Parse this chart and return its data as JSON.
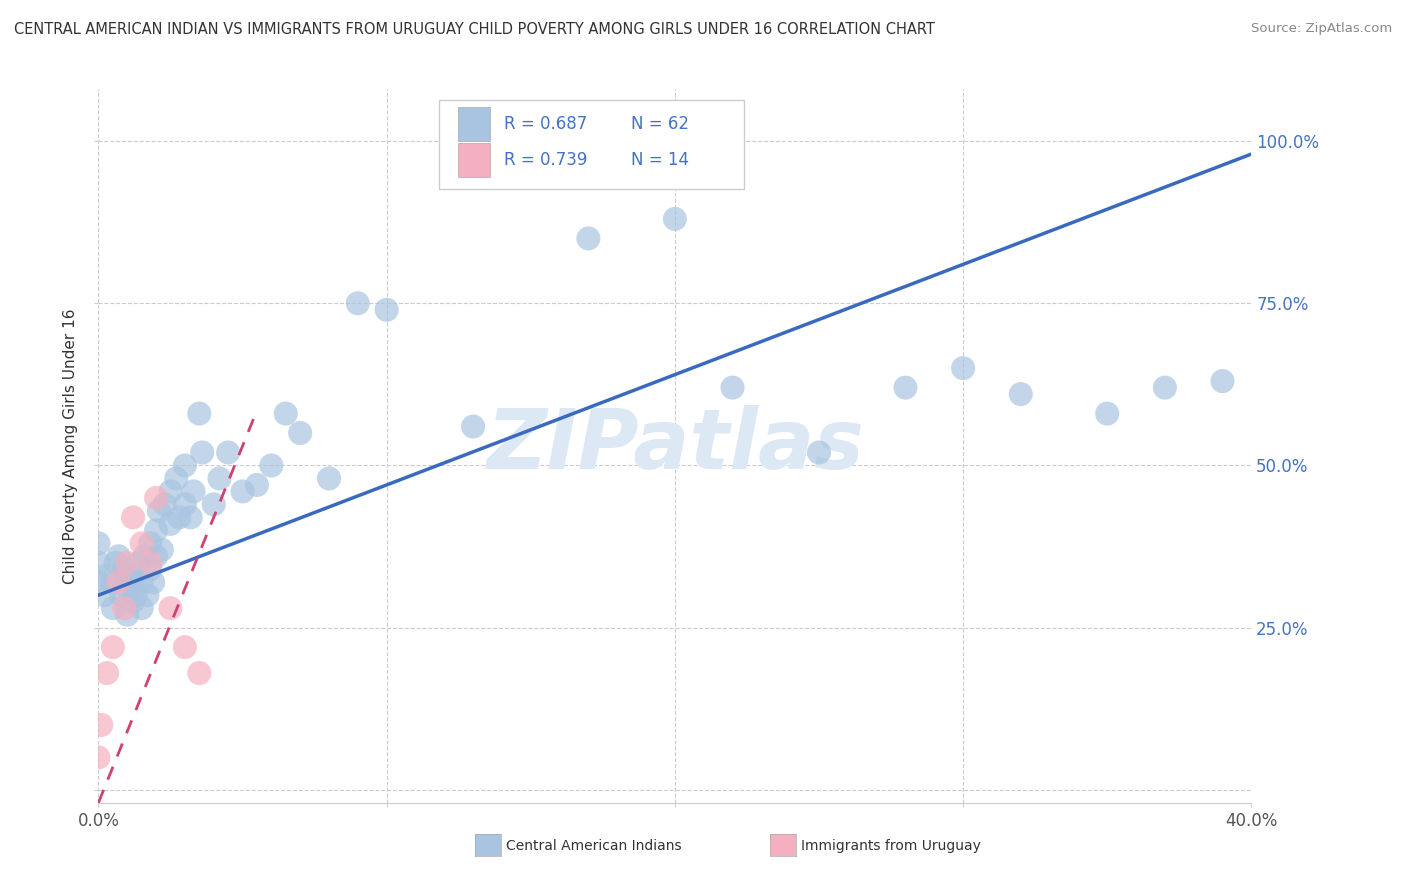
{
  "title": "CENTRAL AMERICAN INDIAN VS IMMIGRANTS FROM URUGUAY CHILD POVERTY AMONG GIRLS UNDER 16 CORRELATION CHART",
  "source": "Source: ZipAtlas.com",
  "ylabel": "Child Poverty Among Girls Under 16",
  "xlim": [
    0.0,
    0.4
  ],
  "ylim": [
    -0.02,
    1.08
  ],
  "xticks": [
    0.0,
    0.1,
    0.2,
    0.3,
    0.4
  ],
  "xticklabels": [
    "0.0%",
    "",
    "",
    "",
    "40.0%"
  ],
  "yticks": [
    0.0,
    0.25,
    0.5,
    0.75,
    1.0
  ],
  "yticklabels_right": [
    "",
    "25.0%",
    "50.0%",
    "75.0%",
    "100.0%"
  ],
  "blue_R": 0.687,
  "blue_N": 62,
  "pink_R": 0.739,
  "pink_N": 14,
  "blue_color": "#a8c4e0",
  "pink_color": "#f4b0c0",
  "blue_line_color": "#3a6abf",
  "pink_line_color": "#d04070",
  "text_color": "#4472c4",
  "watermark_color": "#dce8f4",
  "blue_scatter_x": [
    0.0,
    0.0,
    0.0,
    0.002,
    0.003,
    0.005,
    0.005,
    0.006,
    0.007,
    0.008,
    0.009,
    0.01,
    0.01,
    0.011,
    0.012,
    0.012,
    0.013,
    0.014,
    0.015,
    0.015,
    0.016,
    0.017,
    0.018,
    0.018,
    0.019,
    0.02,
    0.02,
    0.021,
    0.022,
    0.023,
    0.025,
    0.025,
    0.027,
    0.028,
    0.03,
    0.03,
    0.032,
    0.033,
    0.035,
    0.036,
    0.04,
    0.042,
    0.045,
    0.05,
    0.055,
    0.06,
    0.065,
    0.07,
    0.08,
    0.09,
    0.1,
    0.13,
    0.17,
    0.2,
    0.22,
    0.25,
    0.28,
    0.3,
    0.32,
    0.35,
    0.37,
    0.39
  ],
  "blue_scatter_y": [
    0.32,
    0.35,
    0.38,
    0.3,
    0.33,
    0.28,
    0.32,
    0.35,
    0.36,
    0.3,
    0.34,
    0.27,
    0.31,
    0.33,
    0.29,
    0.32,
    0.3,
    0.35,
    0.28,
    0.32,
    0.36,
    0.3,
    0.34,
    0.38,
    0.32,
    0.36,
    0.4,
    0.43,
    0.37,
    0.44,
    0.41,
    0.46,
    0.48,
    0.42,
    0.44,
    0.5,
    0.42,
    0.46,
    0.58,
    0.52,
    0.44,
    0.48,
    0.52,
    0.46,
    0.47,
    0.5,
    0.58,
    0.55,
    0.48,
    0.75,
    0.74,
    0.56,
    0.85,
    0.88,
    0.62,
    0.52,
    0.62,
    0.65,
    0.61,
    0.58,
    0.62,
    0.63
  ],
  "pink_scatter_x": [
    0.0,
    0.001,
    0.003,
    0.005,
    0.007,
    0.009,
    0.01,
    0.012,
    0.015,
    0.018,
    0.02,
    0.025,
    0.03,
    0.035
  ],
  "pink_scatter_y": [
    0.05,
    0.1,
    0.18,
    0.22,
    0.32,
    0.28,
    0.35,
    0.42,
    0.38,
    0.35,
    0.45,
    0.28,
    0.22,
    0.18
  ],
  "blue_line_x0": 0.0,
  "blue_line_y0": 0.3,
  "blue_line_x1": 0.4,
  "blue_line_y1": 0.98,
  "pink_line_x0": 0.0,
  "pink_line_y0": -0.02,
  "pink_line_x1": 0.04,
  "pink_line_y1": 0.42
}
